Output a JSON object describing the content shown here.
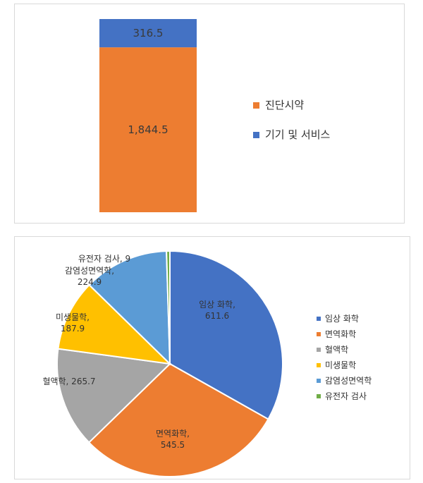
{
  "chart_data": [
    {
      "type": "bar",
      "stacked": true,
      "categories": [
        ""
      ],
      "series": [
        {
          "name": "진단시약",
          "values": [
            1844.5
          ],
          "label": "1,844.5",
          "color": "#ED7D31"
        },
        {
          "name": "기기 및 서비스",
          "values": [
            316.5
          ],
          "label": "316.5",
          "color": "#4472C4"
        }
      ],
      "legend_position": "right"
    },
    {
      "type": "pie",
      "slices": [
        {
          "name": "임상 화학",
          "value": 611.6,
          "label_lines": [
            "임상 화학,",
            "611.6"
          ],
          "color": "#4472C4"
        },
        {
          "name": "면역화학",
          "value": 545.5,
          "label_lines": [
            "면역화학,",
            "545.5"
          ],
          "color": "#ED7D31"
        },
        {
          "name": "혈액학",
          "value": 265.7,
          "label_lines": [
            "혈액학, 265.7"
          ],
          "color": "#A5A5A5"
        },
        {
          "name": "미생물학",
          "value": 187.9,
          "label_lines": [
            "미생물학,",
            "187.9"
          ],
          "color": "#FFC000"
        },
        {
          "name": "감염성면역학",
          "value": 224.9,
          "label_lines": [
            "감염성면역학,",
            "224.9"
          ],
          "color": "#5B9BD5"
        },
        {
          "name": "유전자 검사",
          "value": 9,
          "label_lines": [
            "유전자 검사, 9"
          ],
          "color": "#70AD47"
        }
      ],
      "legend_position": "right"
    }
  ]
}
